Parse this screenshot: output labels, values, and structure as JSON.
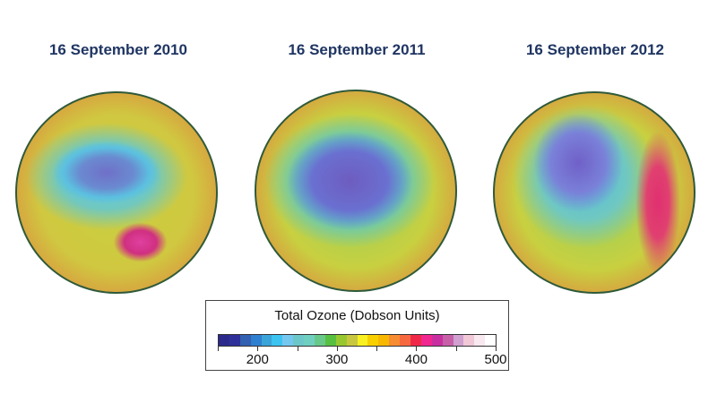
{
  "panels": [
    {
      "title": "16 September 2010"
    },
    {
      "title": "16 September 2011"
    },
    {
      "title": "16 September 2012"
    }
  ],
  "legend": {
    "title": "Total Ozone (Dobson Units)",
    "range": [
      150,
      500
    ],
    "tick_values": [
      150,
      200,
      250,
      300,
      350,
      400,
      450,
      500
    ],
    "labels": [
      {
        "value": 200,
        "text": "200"
      },
      {
        "value": 300,
        "text": "300"
      },
      {
        "value": 400,
        "text": "400"
      },
      {
        "value": 500,
        "text": "500"
      }
    ],
    "colors": [
      "#2b2a8c",
      "#2f3099",
      "#3360b0",
      "#2f7fd0",
      "#3aa4d8",
      "#3cc3f0",
      "#74c8f0",
      "#6cc8c8",
      "#70d0c0",
      "#68c88a",
      "#58c040",
      "#98c830",
      "#c8c840",
      "#f8f020",
      "#f8d000",
      "#f8b800",
      "#f88c30",
      "#f86840",
      "#f02848",
      "#f02890",
      "#c830a0",
      "#c860a8",
      "#d0a0d0",
      "#f0c8d8",
      "#f8e8f0",
      "#ffffff"
    ]
  }
}
